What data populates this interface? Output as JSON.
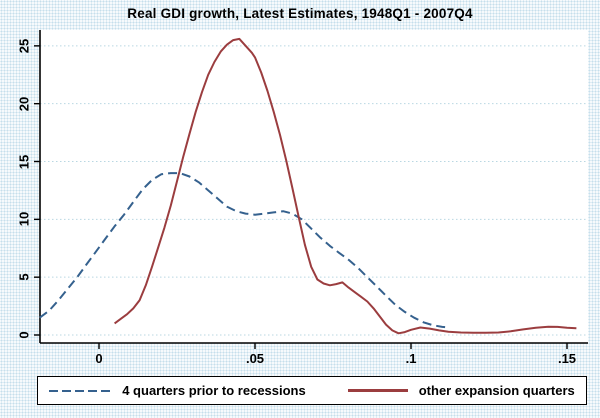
{
  "chart_data": {
    "type": "line",
    "title": "Real GDI growth, Latest Estimates, 1948Q1 - 2007Q4",
    "xlabel": "",
    "ylabel": "",
    "xlim": [
      -0.019,
      0.157
    ],
    "ylim": [
      0,
      26.5
    ],
    "grid": true,
    "grid_style": "dotted",
    "legend_position": "bottom-box",
    "x_ticks": [
      {
        "value": 0,
        "label": "0"
      },
      {
        "value": 0.05,
        "label": ".05"
      },
      {
        "value": 0.1,
        "label": ".1"
      },
      {
        "value": 0.15,
        "label": ".15"
      }
    ],
    "y_ticks": [
      {
        "value": 0,
        "label": "0"
      },
      {
        "value": 5,
        "label": "5"
      },
      {
        "value": 10,
        "label": "10"
      },
      {
        "value": 15,
        "label": "15"
      },
      {
        "value": 20,
        "label": "20"
      },
      {
        "value": 25,
        "label": "25"
      }
    ],
    "colors": {
      "grid": "#b9d7e2",
      "axis": "#000000",
      "plot_background": "#ffffff",
      "page_background": "#e3eef4"
    },
    "series": [
      {
        "name": "4 quarters prior to recessions",
        "style": "dashed",
        "color": "#35618e",
        "points": [
          [
            -0.019,
            1.5
          ],
          [
            -0.016,
            2.1
          ],
          [
            -0.013,
            3.0
          ],
          [
            -0.01,
            4.0
          ],
          [
            -0.007,
            5.0
          ],
          [
            -0.004,
            6.1
          ],
          [
            -0.001,
            7.2
          ],
          [
            0.002,
            8.3
          ],
          [
            0.005,
            9.4
          ],
          [
            0.008,
            10.4
          ],
          [
            0.011,
            11.5
          ],
          [
            0.014,
            12.6
          ],
          [
            0.017,
            13.4
          ],
          [
            0.02,
            13.9
          ],
          [
            0.023,
            14.0
          ],
          [
            0.026,
            14.0
          ],
          [
            0.029,
            13.7
          ],
          [
            0.032,
            13.2
          ],
          [
            0.035,
            12.5
          ],
          [
            0.038,
            11.8
          ],
          [
            0.041,
            11.1
          ],
          [
            0.044,
            10.7
          ],
          [
            0.047,
            10.5
          ],
          [
            0.05,
            10.4
          ],
          [
            0.053,
            10.5
          ],
          [
            0.056,
            10.6
          ],
          [
            0.059,
            10.7
          ],
          [
            0.062,
            10.5
          ],
          [
            0.065,
            10.0
          ],
          [
            0.068,
            9.2
          ],
          [
            0.071,
            8.4
          ],
          [
            0.074,
            7.7
          ],
          [
            0.077,
            7.1
          ],
          [
            0.08,
            6.5
          ],
          [
            0.083,
            5.8
          ],
          [
            0.086,
            5.0
          ],
          [
            0.089,
            4.2
          ],
          [
            0.092,
            3.4
          ],
          [
            0.095,
            2.6
          ],
          [
            0.098,
            2.0
          ],
          [
            0.101,
            1.5
          ],
          [
            0.104,
            1.1
          ],
          [
            0.107,
            0.85
          ],
          [
            0.11,
            0.7
          ],
          [
            0.112,
            0.65
          ]
        ]
      },
      {
        "name": "other expansion quarters",
        "style": "solid",
        "color": "#9b3d3f",
        "points": [
          [
            0.005,
            1.0
          ],
          [
            0.007,
            1.4
          ],
          [
            0.009,
            1.8
          ],
          [
            0.011,
            2.3
          ],
          [
            0.013,
            3.0
          ],
          [
            0.015,
            4.3
          ],
          [
            0.017,
            5.9
          ],
          [
            0.019,
            7.6
          ],
          [
            0.021,
            9.3
          ],
          [
            0.023,
            11.2
          ],
          [
            0.025,
            13.3
          ],
          [
            0.027,
            15.4
          ],
          [
            0.029,
            17.4
          ],
          [
            0.031,
            19.3
          ],
          [
            0.033,
            21.0
          ],
          [
            0.035,
            22.5
          ],
          [
            0.037,
            23.6
          ],
          [
            0.039,
            24.5
          ],
          [
            0.041,
            25.1
          ],
          [
            0.043,
            25.5
          ],
          [
            0.045,
            25.6
          ],
          [
            0.047,
            25.0
          ],
          [
            0.049,
            24.4
          ],
          [
            0.05,
            24.0
          ],
          [
            0.052,
            22.7
          ],
          [
            0.054,
            21.1
          ],
          [
            0.056,
            19.3
          ],
          [
            0.058,
            17.3
          ],
          [
            0.06,
            15.1
          ],
          [
            0.062,
            12.7
          ],
          [
            0.064,
            10.2
          ],
          [
            0.066,
            7.8
          ],
          [
            0.068,
            5.9
          ],
          [
            0.07,
            4.8
          ],
          [
            0.072,
            4.45
          ],
          [
            0.074,
            4.3
          ],
          [
            0.076,
            4.4
          ],
          [
            0.078,
            4.55
          ],
          [
            0.08,
            4.1
          ],
          [
            0.082,
            3.7
          ],
          [
            0.084,
            3.3
          ],
          [
            0.086,
            2.9
          ],
          [
            0.088,
            2.3
          ],
          [
            0.09,
            1.6
          ],
          [
            0.092,
            0.9
          ],
          [
            0.094,
            0.4
          ],
          [
            0.096,
            0.15
          ],
          [
            0.098,
            0.25
          ],
          [
            0.1,
            0.45
          ],
          [
            0.103,
            0.65
          ],
          [
            0.106,
            0.55
          ],
          [
            0.109,
            0.4
          ],
          [
            0.112,
            0.28
          ],
          [
            0.116,
            0.22
          ],
          [
            0.12,
            0.2
          ],
          [
            0.124,
            0.2
          ],
          [
            0.128,
            0.22
          ],
          [
            0.132,
            0.32
          ],
          [
            0.136,
            0.48
          ],
          [
            0.14,
            0.62
          ],
          [
            0.144,
            0.72
          ],
          [
            0.147,
            0.7
          ],
          [
            0.15,
            0.62
          ],
          [
            0.153,
            0.58
          ]
        ]
      }
    ]
  }
}
